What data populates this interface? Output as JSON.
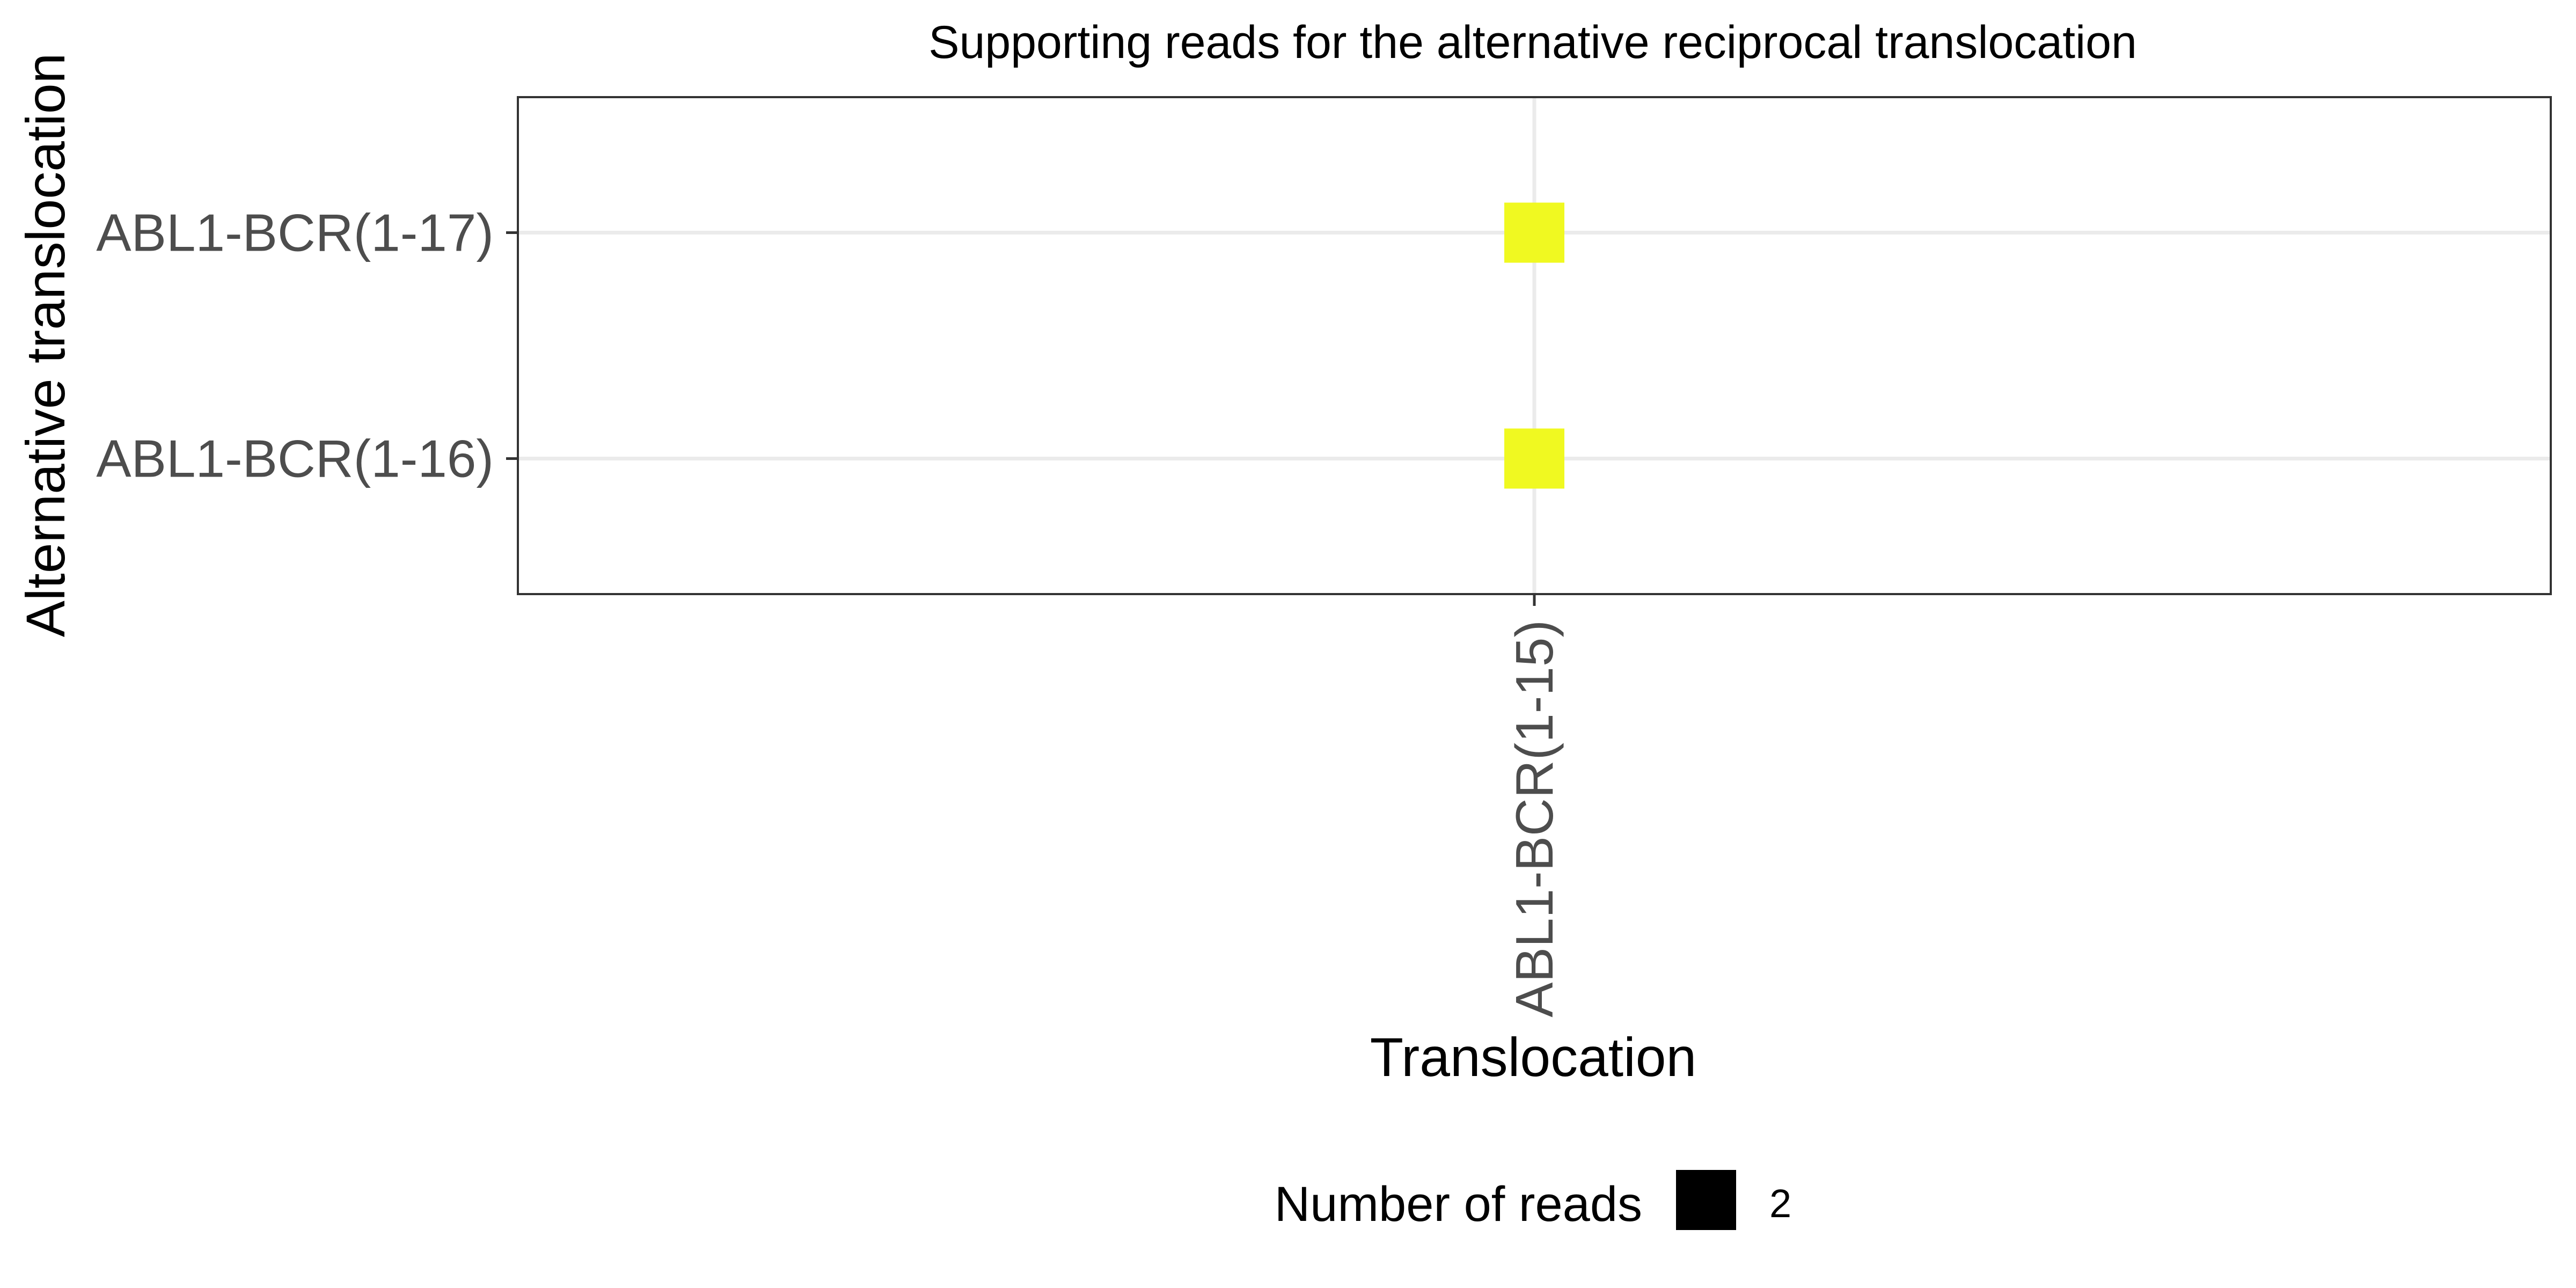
{
  "chart_data": {
    "type": "scatter",
    "title": "Supporting reads for the alternative reciprocal translocation",
    "xlabel": "Translocation",
    "ylabel": "Alternative translocation",
    "x_categories": [
      "ABL1-BCR(1-15)"
    ],
    "y_categories": [
      "ABL1-BCR(1-16)",
      "ABL1-BCR(1-17)"
    ],
    "points": [
      {
        "x": "ABL1-BCR(1-15)",
        "y": "ABL1-BCR(1-17)",
        "reads": 2
      },
      {
        "x": "ABL1-BCR(1-15)",
        "y": "ABL1-BCR(1-16)",
        "reads": 2
      }
    ],
    "marker_shape": "square",
    "marker_color": "#f0f921",
    "grid": true,
    "legend": {
      "position": "bottom",
      "title": "Number of reads",
      "items": [
        {
          "label": "2",
          "color": "#000000"
        }
      ]
    }
  }
}
